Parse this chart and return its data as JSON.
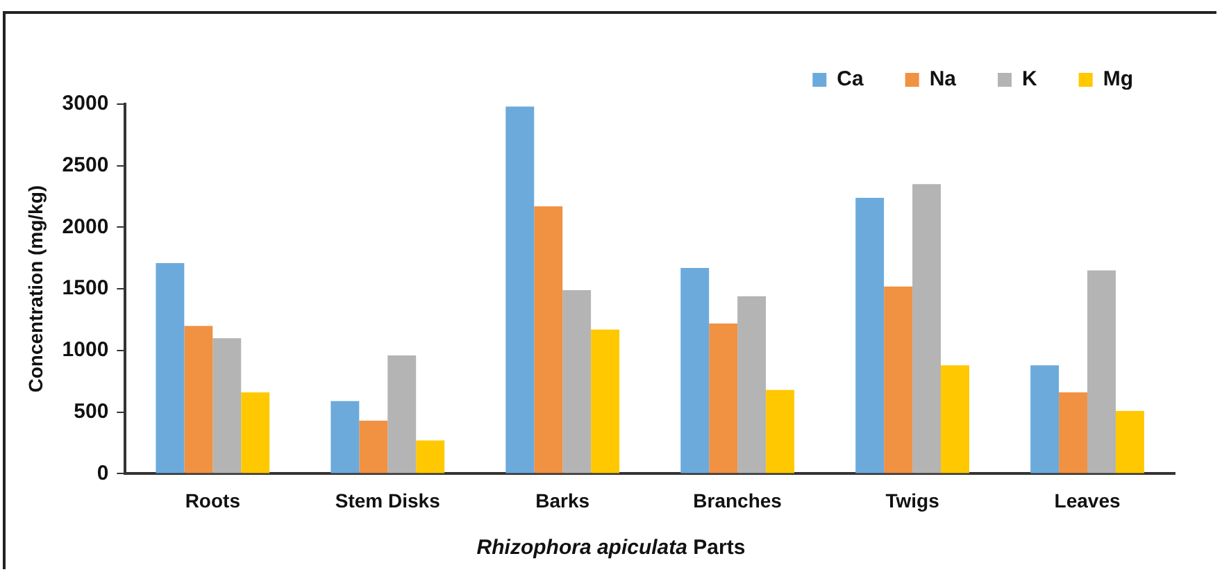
{
  "chart_data": {
    "type": "bar",
    "xlabel": "Rhizophora apiculata Parts",
    "ylabel": "Concentration (mg/kg)",
    "categories": [
      "Roots",
      "Stem Disks",
      "Barks",
      "Branches",
      "Twigs",
      "Leaves"
    ],
    "series": [
      {
        "name": "Ca",
        "color": "#6caadc",
        "values": [
          1710,
          590,
          2980,
          1670,
          2240,
          880
        ]
      },
      {
        "name": "Na",
        "color": "#f19142",
        "values": [
          1200,
          430,
          2170,
          1220,
          1520,
          660
        ]
      },
      {
        "name": "K",
        "color": "#b4b4b4",
        "values": [
          1100,
          960,
          1490,
          1440,
          2350,
          1650
        ]
      },
      {
        "name": "Mg",
        "color": "#ffc800",
        "values": [
          660,
          270,
          1170,
          680,
          880,
          510
        ]
      }
    ],
    "ylim": [
      0,
      3000
    ],
    "yticks": [
      0,
      500,
      1000,
      1500,
      2000,
      2500,
      3000
    ],
    "grid": false,
    "legend": "top right"
  }
}
